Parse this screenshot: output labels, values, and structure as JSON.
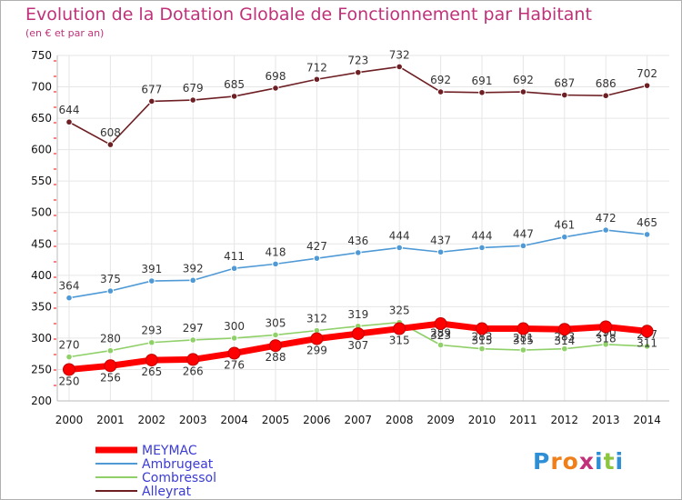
{
  "page": {
    "title": "Evolution de la Dotation Globale de Fonctionnement par Habitant",
    "subtitle": "(en € et par an)",
    "logo_letters": [
      "P",
      "r",
      "o",
      "x",
      "i",
      "t",
      "i"
    ],
    "logo_colors": [
      "#2f8fd6",
      "#ef7f1a",
      "#ef7f1a",
      "#c0317a",
      "#2f8fd6",
      "#8cc63f",
      "#2f8fd6"
    ]
  },
  "chart_data": {
    "type": "line",
    "title": "Evolution de la Dotation Globale de Fonctionnement par Habitant",
    "subtitle": "(en € et par an)",
    "xlabel": "",
    "ylabel": "",
    "categories": [
      "2000",
      "2001",
      "2002",
      "2003",
      "2004",
      "2005",
      "2006",
      "2007",
      "2008",
      "2009",
      "2010",
      "2011",
      "2012",
      "2013",
      "2014"
    ],
    "ylim": [
      200,
      750
    ],
    "yticks": [
      200,
      250,
      300,
      350,
      400,
      450,
      500,
      550,
      600,
      650,
      700,
      750
    ],
    "grid": true,
    "legend_position": "bottom-left",
    "series": [
      {
        "name": "Alleyrat",
        "color": "#6e1f24",
        "values": [
          644,
          608,
          677,
          679,
          685,
          698,
          712,
          723,
          732,
          692,
          691,
          692,
          687,
          686,
          702
        ]
      },
      {
        "name": "Ambrugeat",
        "color": "#4f9ad6",
        "values": [
          364,
          375,
          391,
          392,
          411,
          418,
          427,
          436,
          444,
          437,
          444,
          447,
          461,
          472,
          465
        ]
      },
      {
        "name": "Combressol",
        "color": "#8fd068",
        "values": [
          270,
          280,
          293,
          297,
          300,
          305,
          312,
          319,
          325,
          289,
          283,
          281,
          283,
          290,
          287
        ]
      },
      {
        "name": "MEYMAC",
        "color": "#ff0000",
        "values": [
          250,
          256,
          265,
          266,
          276,
          288,
          299,
          307,
          315,
          323,
          315,
          315,
          314,
          318,
          311
        ]
      }
    ],
    "legend_order": [
      "MEYMAC",
      "Ambrugeat",
      "Combressol",
      "Alleyrat"
    ],
    "legend_colors": {
      "MEYMAC": "#3b3bd6",
      "Ambrugeat": "#3b3bd6",
      "Combressol": "#3b3bd6",
      "Alleyrat": "#3b3bd6"
    }
  }
}
